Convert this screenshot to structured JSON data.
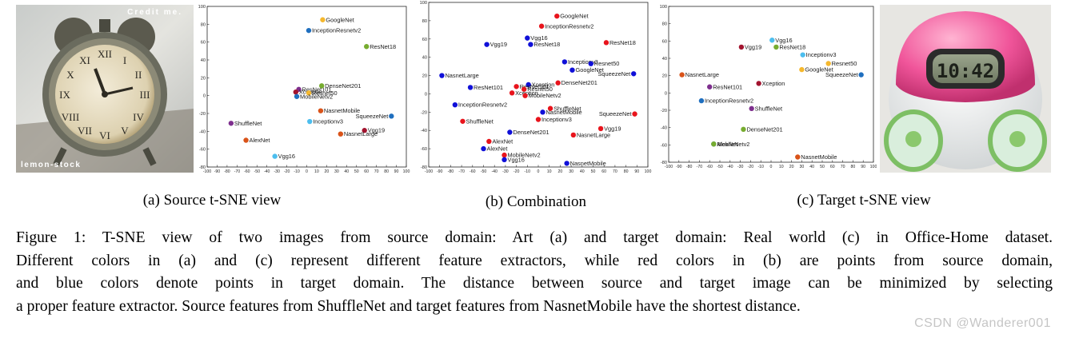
{
  "photos": {
    "left": {
      "overlay_top": "Credit me.",
      "overlay_bottom": "lemon-stock",
      "alt": "alarm clock painting"
    },
    "right": {
      "display": "10:42",
      "alt": "pink alarm clock photo"
    }
  },
  "subcaptions": {
    "a": "(a) Source t-SNE view",
    "b": "(b) Combination",
    "c": "(c) Target t-SNE view"
  },
  "caption_lines": [
    "Figure 1: T-SNE view of two images from source domain: Art (a) and target domain: Real world (c) in Office-Home dataset.",
    "Different colors in (a) and (c) represent different feature extractors, while red colors in (b) are points from source domain,",
    "and blue colors denote points in target domain. The distance between source and target image can be minimized by selecting",
    "a proper feature extractor. Source features from ShuffleNet and target features from NasnetMobile have the shortest distance."
  ],
  "watermark": "CSDN @Wanderer001",
  "chart_data": [
    {
      "type": "scatter",
      "id": "source",
      "xlim": [
        -100,
        100
      ],
      "ylim": [
        -80,
        100
      ],
      "xticks": [
        "-100",
        "-90",
        "-80",
        "-70",
        "-60",
        "-50",
        "-40",
        "-30",
        "-20",
        "-10",
        "0",
        "10",
        "20",
        "30",
        "40",
        "50",
        "60",
        "70",
        "80",
        "90",
        "100"
      ],
      "yticks": [
        "100",
        "80",
        "60",
        "40",
        "20",
        "0",
        "-20",
        "-40",
        "-60",
        "-80"
      ],
      "points": [
        {
          "label": "GoogleNet",
          "x": 16,
          "y": 85,
          "color": "#f5b82e"
        },
        {
          "label": "InceptionResnetv2",
          "x": 2,
          "y": 73,
          "color": "#1f6fbf"
        },
        {
          "label": "ResNet18",
          "x": 60,
          "y": 55,
          "color": "#77ac30"
        },
        {
          "label": "ResNet101",
          "x": -8,
          "y": 7,
          "color": "#7e2f8e"
        },
        {
          "label": "DenseNet201",
          "x": 15,
          "y": 11,
          "color": "#77ac30"
        },
        {
          "label": "Xception",
          "x": -11,
          "y": 4,
          "color": "#a2142f"
        },
        {
          "label": "Resnet50",
          "x": 2,
          "y": 3,
          "color": "#f5b82e"
        },
        {
          "label": "MobileNetv2",
          "x": -10,
          "y": -1,
          "color": "#1f6fbf"
        },
        {
          "label": "NasnetMobile",
          "x": 14,
          "y": -17,
          "color": "#d95319"
        },
        {
          "label": "Inceptionv3",
          "x": 3,
          "y": -29,
          "color": "#4dbeee"
        },
        {
          "label": "SqueezeNet",
          "x": 85,
          "y": -23,
          "color": "#1f6fbf"
        },
        {
          "label": "ShuffleNet",
          "x": -76,
          "y": -31,
          "color": "#7e2f8e"
        },
        {
          "label": "Vgg19",
          "x": 58,
          "y": -39,
          "color": "#a2142f"
        },
        {
          "label": "NasnetLarge",
          "x": 34,
          "y": -43,
          "color": "#d95319"
        },
        {
          "label": "AlexNet",
          "x": -61,
          "y": -50,
          "color": "#d95319"
        },
        {
          "label": "Vgg16",
          "x": -32,
          "y": -68,
          "color": "#4dbeee"
        }
      ]
    },
    {
      "type": "scatter",
      "id": "combination",
      "xlim": [
        -100,
        100
      ],
      "ylim": [
        -80,
        100
      ],
      "xticks": [
        "-100",
        "-90",
        "-80",
        "-70",
        "-60",
        "-50",
        "-40",
        "-30",
        "-20",
        "-10",
        "0",
        "10",
        "20",
        "30",
        "40",
        "50",
        "60",
        "70",
        "80",
        "90",
        "100"
      ],
      "yticks": [
        "100",
        "80",
        "60",
        "40",
        "20",
        "0",
        "-20",
        "-40",
        "-60",
        "-80"
      ],
      "series": [
        {
          "name": "source",
          "color": "#e8141c"
        },
        {
          "name": "target",
          "color": "#1010d8"
        }
      ],
      "points": [
        {
          "label": "GoogleNet",
          "x": 17,
          "y": 85,
          "series": "source"
        },
        {
          "label": "InceptionResnetv2",
          "x": 3,
          "y": 74,
          "series": "source"
        },
        {
          "label": "Vgg16",
          "x": -10,
          "y": 61,
          "series": "target"
        },
        {
          "label": "Vgg19",
          "x": -47,
          "y": 54,
          "series": "target"
        },
        {
          "label": "ResNet18",
          "x": -7,
          "y": 54,
          "series": "target"
        },
        {
          "label": "ResNet18",
          "x": 62,
          "y": 56,
          "series": "source"
        },
        {
          "label": "Inceptionv3",
          "x": 24,
          "y": 35,
          "series": "target"
        },
        {
          "label": "Resnet50",
          "x": 48,
          "y": 33,
          "series": "target"
        },
        {
          "label": "GoogleNet",
          "x": 31,
          "y": 26,
          "series": "target"
        },
        {
          "label": "NasnetLarge",
          "x": -88,
          "y": 20,
          "series": "target"
        },
        {
          "label": "SqueezeNet",
          "x": 87,
          "y": 22,
          "series": "target"
        },
        {
          "label": "ResNet101",
          "x": -62,
          "y": 7,
          "series": "target"
        },
        {
          "label": "Xception",
          "x": -9,
          "y": 10,
          "series": "target"
        },
        {
          "label": "DenseNet201",
          "x": 18,
          "y": 12,
          "series": "source"
        },
        {
          "label": "ResNet101",
          "x": -20,
          "y": 8,
          "series": "source"
        },
        {
          "label": "Resnet50",
          "x": -13,
          "y": 5,
          "series": "source"
        },
        {
          "label": "Xception",
          "x": -24,
          "y": 1,
          "series": "source"
        },
        {
          "label": "MobileNetv2",
          "x": -12,
          "y": -2,
          "series": "source"
        },
        {
          "label": "InceptionResnetv2",
          "x": -76,
          "y": -12,
          "series": "target"
        },
        {
          "label": "ShuffleNet",
          "x": 11,
          "y": -16,
          "series": "source"
        },
        {
          "label": "SqueezeNet",
          "x": 88,
          "y": -22,
          "series": "source"
        },
        {
          "label": "NasnetMobile",
          "x": 4,
          "y": -20,
          "series": "target"
        },
        {
          "label": "Inceptionv3",
          "x": 0,
          "y": -28,
          "series": "source"
        },
        {
          "label": "ShuffleNet",
          "x": -69,
          "y": -30,
          "series": "source"
        },
        {
          "label": "DenseNet201",
          "x": -26,
          "y": -42,
          "series": "target"
        },
        {
          "label": "Vgg19",
          "x": 57,
          "y": -38,
          "series": "source"
        },
        {
          "label": "NasnetLarge",
          "x": 32,
          "y": -45,
          "series": "source"
        },
        {
          "label": "AlexNet",
          "x": -45,
          "y": -52,
          "series": "source"
        },
        {
          "label": "AlexNet",
          "x": -50,
          "y": -60,
          "series": "target"
        },
        {
          "label": "MobileNetv2",
          "x": -31,
          "y": -67,
          "series": "source"
        },
        {
          "label": "Vgg16",
          "x": -31,
          "y": -72,
          "series": "target"
        },
        {
          "label": "NasnetMobile",
          "x": 26,
          "y": -76,
          "series": "target"
        }
      ]
    },
    {
      "type": "scatter",
      "id": "target",
      "xlim": [
        -100,
        100
      ],
      "ylim": [
        -80,
        100
      ],
      "xticks": [
        "-100",
        "-90",
        "-80",
        "-70",
        "-60",
        "-50",
        "-40",
        "-30",
        "-20",
        "-10",
        "0",
        "10",
        "20",
        "30",
        "40",
        "50",
        "60",
        "70",
        "80",
        "90",
        "100"
      ],
      "yticks": [
        "100",
        "80",
        "60",
        "40",
        "20",
        "0",
        "-20",
        "-40",
        "-60",
        "-80"
      ],
      "points": [
        {
          "label": "Vgg16",
          "x": 1,
          "y": 61,
          "color": "#4dbeee"
        },
        {
          "label": "Vgg19",
          "x": -29,
          "y": 53,
          "color": "#a2142f"
        },
        {
          "label": "ResNet18",
          "x": 5,
          "y": 53,
          "color": "#77ac30"
        },
        {
          "label": "Inceptionv3",
          "x": 31,
          "y": 44,
          "color": "#4dbeee"
        },
        {
          "label": "Resnet50",
          "x": 56,
          "y": 34,
          "color": "#f5b82e"
        },
        {
          "label": "GoogleNet",
          "x": 30,
          "y": 27,
          "color": "#f5b82e"
        },
        {
          "label": "NasnetLarge",
          "x": -87,
          "y": 21,
          "color": "#d95319"
        },
        {
          "label": "SqueezeNet",
          "x": 88,
          "y": 21,
          "color": "#1f6fbf"
        },
        {
          "label": "ResNet101",
          "x": -60,
          "y": 7,
          "color": "#7e2f8e"
        },
        {
          "label": "Xception",
          "x": -12,
          "y": 11,
          "color": "#a2142f"
        },
        {
          "label": "InceptionResnetv2",
          "x": -68,
          "y": -9,
          "color": "#1f6fbf"
        },
        {
          "label": "ShuffleNet",
          "x": -19,
          "y": -18,
          "color": "#7e2f8e"
        },
        {
          "label": "DenseNet201",
          "x": -27,
          "y": -42,
          "color": "#77ac30"
        },
        {
          "label": "AlexNet",
          "x": -56,
          "y": -59,
          "color": "#1f6fbf"
        },
        {
          "label": "MobileNetv2",
          "x": -56,
          "y": -59,
          "color": "#77ac30"
        },
        {
          "label": "NasnetMobile",
          "x": 26,
          "y": -74,
          "color": "#d95319"
        }
      ]
    }
  ]
}
